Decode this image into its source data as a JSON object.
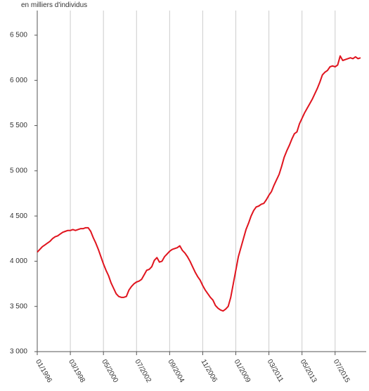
{
  "chart_data": {
    "type": "line",
    "y_label": "en milliers d'individus",
    "categories": [
      "01/1996",
      null,
      null,
      null,
      null,
      null,
      null,
      null,
      null,
      null,
      null,
      null,
      null,
      "03/1998",
      null,
      null,
      null,
      null,
      null,
      null,
      null,
      null,
      null,
      null,
      null,
      null,
      "05/2000",
      null,
      null,
      null,
      null,
      null,
      null,
      null,
      null,
      null,
      null,
      null,
      null,
      "07/2002",
      null,
      null,
      null,
      null,
      null,
      null,
      null,
      null,
      null,
      null,
      null,
      null,
      "09/2004",
      null,
      null,
      null,
      null,
      null,
      null,
      null,
      null,
      null,
      null,
      null,
      null,
      "11/2006",
      null,
      null,
      null,
      null,
      null,
      null,
      null,
      null,
      null,
      null,
      null,
      null,
      "01/2009",
      null,
      null,
      null,
      null,
      null,
      null,
      null,
      null,
      null,
      null,
      null,
      null,
      "03/2011",
      null,
      null,
      null,
      null,
      null,
      null,
      null,
      null,
      null,
      null,
      null,
      null,
      "05/2013",
      null,
      null,
      null,
      null,
      null,
      null,
      null,
      null,
      null,
      null,
      null,
      null,
      "07/2015",
      null,
      null,
      null,
      null,
      null,
      null,
      null,
      null,
      null,
      null
    ],
    "series": [
      {
        "color": "#e0141e",
        "values": [
          4100,
          4130,
          4160,
          4180,
          4200,
          4220,
          4250,
          4270,
          4280,
          4300,
          4320,
          4330,
          4340,
          4340,
          4350,
          4340,
          4350,
          4360,
          4360,
          4370,
          4370,
          4330,
          4260,
          4200,
          4130,
          4050,
          3970,
          3900,
          3840,
          3760,
          3700,
          3640,
          3610,
          3600,
          3600,
          3610,
          3680,
          3720,
          3750,
          3770,
          3780,
          3800,
          3850,
          3900,
          3910,
          3940,
          4010,
          4040,
          3990,
          4000,
          4050,
          4080,
          4110,
          4130,
          4140,
          4150,
          4170,
          4120,
          4090,
          4050,
          4000,
          3940,
          3880,
          3830,
          3790,
          3730,
          3680,
          3640,
          3600,
          3570,
          3510,
          3480,
          3460,
          3450,
          3470,
          3500,
          3600,
          3750,
          3900,
          4050,
          4150,
          4250,
          4350,
          4420,
          4500,
          4560,
          4600,
          4610,
          4630,
          4640,
          4680,
          4730,
          4770,
          4840,
          4900,
          4960,
          5050,
          5150,
          5220,
          5280,
          5350,
          5410,
          5430,
          5520,
          5580,
          5640,
          5690,
          5740,
          5790,
          5850,
          5910,
          5980,
          6060,
          6090,
          6110,
          6150,
          6160,
          6150,
          6170,
          6270,
          6220,
          6230,
          6240,
          6250,
          6240,
          6260,
          6240,
          6250
        ]
      }
    ],
    "ylim": [
      3000,
      6500
    ],
    "yticks": [
      {
        "value": 3000,
        "label": "3 000"
      },
      {
        "value": 3500,
        "label": "3 500"
      },
      {
        "value": 4000,
        "label": "4 000"
      },
      {
        "value": 4500,
        "label": "4 500"
      },
      {
        "value": 5000,
        "label": "5 000"
      },
      {
        "value": 5500,
        "label": "5 500"
      },
      {
        "value": 6000,
        "label": "6 000"
      },
      {
        "value": 6500,
        "label": "6 500"
      }
    ],
    "grid": true
  }
}
